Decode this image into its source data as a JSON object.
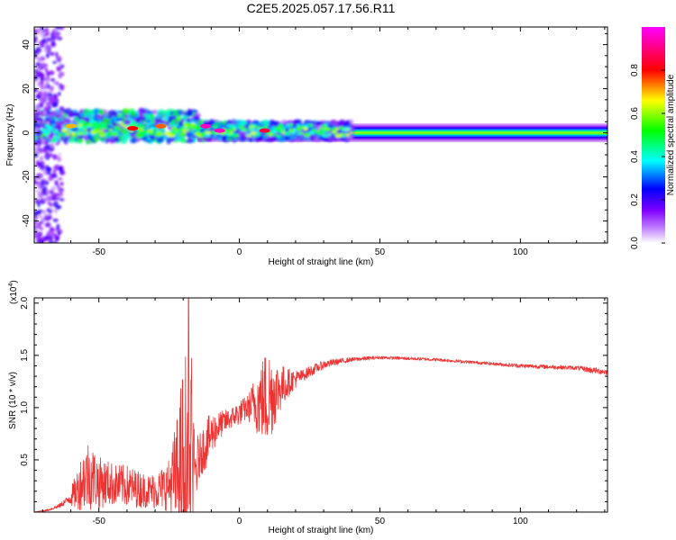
{
  "figure_title": "C2E5.2025.057.17.56.R11",
  "chart_data": [
    {
      "type": "heatmap",
      "title": "",
      "xlabel": "Height of straight line (km)",
      "ylabel": "Frequency (Hz)",
      "xlim": [
        -73,
        131
      ],
      "ylim": [
        -50,
        48
      ],
      "xticks": [
        -50,
        0,
        50,
        100
      ],
      "xtick_labels": [
        "-50",
        "0",
        "50",
        "100"
      ],
      "yticks": [
        -40,
        -20,
        0,
        20,
        40
      ],
      "ytick_labels": [
        "-40",
        "-20",
        "0",
        "20",
        "40"
      ],
      "colorbar": {
        "label": "Normalized spectral amplitude",
        "range": [
          0,
          1
        ],
        "ticks": [
          0.0,
          0.2,
          0.4,
          0.6,
          0.8
        ],
        "tick_labels": [
          "0.0",
          "0.2",
          "0.4",
          "0.6",
          "0.8"
        ],
        "colormap": [
          "#ffffff",
          "#a000ff",
          "#0000ff",
          "#00ffff",
          "#00ff00",
          "#ffff00",
          "#ff0000",
          "#ff00ff"
        ]
      },
      "features": {
        "main_line_frequency_hz": 0,
        "steady_band_halfwidth_hz": 4,
        "noisy_region_x": [
          -73,
          -15
        ],
        "broadband_region_x": [
          -73,
          -63
        ],
        "hotspots": [
          {
            "x": -12,
            "y": 3,
            "value": 0.95
          },
          {
            "x": -7,
            "y": 1,
            "value": 0.95
          },
          {
            "x": 9,
            "y": 1,
            "value": 0.85
          },
          {
            "x": -38,
            "y": 2,
            "value": 0.8
          },
          {
            "x": -28,
            "y": 3,
            "value": 0.75
          },
          {
            "x": -60,
            "y": 3,
            "value": 0.7
          }
        ]
      },
      "grid": false
    },
    {
      "type": "line",
      "title": "",
      "xlabel": "Height of straight line (km)",
      "ylabel": "SNR (10 * v/v)",
      "y_multiplier_label": "(x10",
      "y_multiplier_exponent": "4",
      "y_multiplier_close": ")",
      "xlim": [
        -73,
        131
      ],
      "ylim": [
        0,
        2.05
      ],
      "xticks": [
        -50,
        0,
        50,
        100
      ],
      "xtick_labels": [
        "-50",
        "0",
        "50",
        "100"
      ],
      "yticks": [
        0.5,
        1.0,
        1.5,
        2.0
      ],
      "ytick_labels": [
        "0.5",
        "1.0",
        "1.5",
        "2.0"
      ],
      "series": [
        {
          "color": "#ee3333",
          "x": [
            -73,
            -68,
            -64,
            -61,
            -58,
            -56,
            -54,
            -52,
            -50,
            -47,
            -44,
            -40,
            -36,
            -32,
            -28,
            -25,
            -22,
            -20,
            -18,
            -16,
            -14,
            -12,
            -9,
            -6,
            -3,
            0,
            3,
            6,
            10,
            14,
            18,
            22,
            26,
            30,
            35,
            40,
            45,
            50,
            60,
            70,
            80,
            90,
            100,
            110,
            120,
            125,
            131
          ],
          "mean": [
            0.0,
            0.02,
            0.06,
            0.12,
            0.2,
            0.3,
            0.36,
            0.33,
            0.28,
            0.28,
            0.26,
            0.25,
            0.22,
            0.2,
            0.22,
            0.26,
            0.36,
            0.45,
            0.5,
            0.35,
            0.55,
            0.65,
            0.78,
            0.85,
            0.9,
            0.95,
            1.0,
            1.05,
            1.1,
            1.18,
            1.25,
            1.3,
            1.36,
            1.41,
            1.44,
            1.46,
            1.47,
            1.48,
            1.47,
            1.46,
            1.44,
            1.42,
            1.4,
            1.39,
            1.38,
            1.36,
            1.34
          ],
          "noise": [
            0.0,
            0.01,
            0.02,
            0.04,
            0.18,
            0.28,
            0.35,
            0.3,
            0.25,
            0.22,
            0.2,
            0.2,
            0.18,
            0.16,
            0.2,
            0.25,
            0.6,
            1.0,
            1.2,
            0.4,
            0.2,
            0.25,
            0.18,
            0.12,
            0.1,
            0.12,
            0.12,
            0.3,
            0.5,
            0.25,
            0.12,
            0.06,
            0.05,
            0.04,
            0.03,
            0.02,
            0.02,
            0.015,
            0.015,
            0.015,
            0.015,
            0.015,
            0.02,
            0.02,
            0.02,
            0.03,
            0.03
          ]
        }
      ],
      "grid": false
    }
  ]
}
